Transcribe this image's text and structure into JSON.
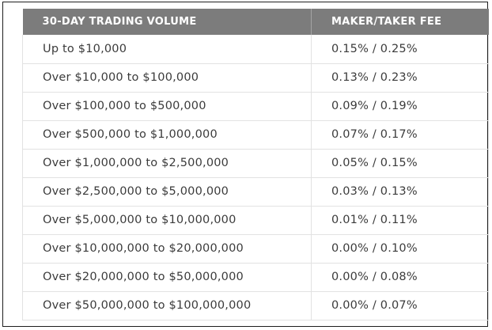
{
  "table": {
    "headers": {
      "volume": "30-DAY TRADING VOLUME",
      "fee": "MAKER/TAKER FEE"
    },
    "rows": [
      {
        "volume": "Up to $10,000",
        "fee": "0.15% / 0.25%"
      },
      {
        "volume": "Over $10,000 to $100,000",
        "fee": "0.13% / 0.23%"
      },
      {
        "volume": "Over $100,000 to $500,000",
        "fee": "0.09% / 0.19%"
      },
      {
        "volume": "Over $500,000 to $1,000,000",
        "fee": "0.07% / 0.17%"
      },
      {
        "volume": "Over $1,000,000 to $2,500,000",
        "fee": "0.05% / 0.15%"
      },
      {
        "volume": "Over $2,500,000 to $5,000,000",
        "fee": "0.03% / 0.13%"
      },
      {
        "volume": "Over $5,000,000 to $10,000,000",
        "fee": "0.01% / 0.11%"
      },
      {
        "volume": "Over $10,000,000 to $20,000,000",
        "fee": "0.00% / 0.10%"
      },
      {
        "volume": "Over $20,000,000 to $50,000,000",
        "fee": "0.00% / 0.08%"
      },
      {
        "volume": "Over $50,000,000 to $100,000,000",
        "fee": "0.00% / 0.07%"
      }
    ]
  },
  "colors": {
    "header_bg": "#7c7c7c",
    "header_text": "#ffffff",
    "body_text": "#3b3b3b",
    "row_border": "#e2e2e2",
    "frame_border": "#1e1e1e"
  }
}
